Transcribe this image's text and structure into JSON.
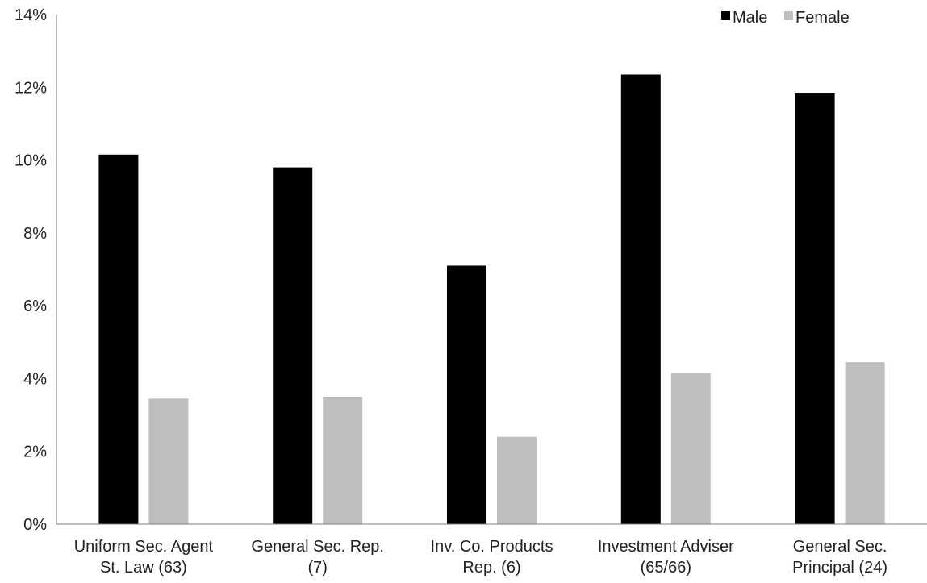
{
  "chart_data": {
    "type": "bar",
    "categories": [
      [
        "Uniform Sec. Agent",
        "St. Law (63)"
      ],
      [
        "General Sec. Rep.",
        "(7)"
      ],
      [
        "Inv. Co. Products",
        "Rep. (6)"
      ],
      [
        "Investment Adviser",
        "(65/66)"
      ],
      [
        "General Sec.",
        "Principal (24)"
      ]
    ],
    "series": [
      {
        "name": "Male",
        "color": "#000000",
        "values": [
          10.15,
          9.8,
          7.1,
          12.35,
          11.85
        ]
      },
      {
        "name": "Female",
        "color": "#bfbfbf",
        "values": [
          3.45,
          3.5,
          2.4,
          4.15,
          4.45
        ]
      }
    ],
    "y_ticks": [
      "0%",
      "2%",
      "4%",
      "6%",
      "8%",
      "10%",
      "12%",
      "14%"
    ],
    "ylim": [
      0,
      14
    ],
    "y_unit": "%",
    "grid": false,
    "legend_position": "top-right"
  }
}
